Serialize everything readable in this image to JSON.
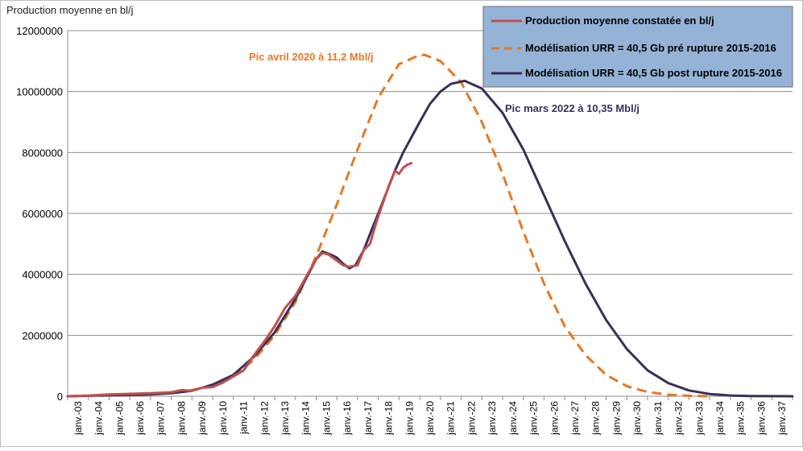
{
  "chart_data": {
    "type": "line",
    "ylabel": "Production moyenne en bl/j",
    "ylim": [
      0,
      12000000
    ],
    "yticks": [
      "0",
      "2000000",
      "4000000",
      "6000000",
      "8000000",
      "10000000",
      "12000000"
    ],
    "xlim": [
      2003,
      2038
    ],
    "x_tick_labels": [
      "janv.-03",
      "janv.-04",
      "janv.-05",
      "janv.-06",
      "janv.-07",
      "janv.-08",
      "janv.-09",
      "janv.-10",
      "janv.-11",
      "janv.-12",
      "janv.-13",
      "janv.-14",
      "janv.-15",
      "janv.-16",
      "janv.-17",
      "janv.-18",
      "janv.-19",
      "janv.-20",
      "janv.-21",
      "janv.-22",
      "janv.-23",
      "janv.-24",
      "janv.-25",
      "janv.-26",
      "janv.-27",
      "janv.-28",
      "janv.-29",
      "janv.-30",
      "janv.-31",
      "janv.-32",
      "janv.-33",
      "janv.-34",
      "janv.-35",
      "janv.-36",
      "janv.-37"
    ],
    "grid": "horizontal",
    "legend_position": "top-right",
    "series": [
      {
        "name": "Production moyenne constatée en bl/j",
        "color": "#c0504d",
        "style": "solid",
        "x": [
          2003.0,
          2004.0,
          2005.0,
          2006.0,
          2007.0,
          2008.0,
          2008.5,
          2009.0,
          2009.5,
          2010.0,
          2010.5,
          2011.0,
          2011.5,
          2012.0,
          2012.5,
          2013.0,
          2013.5,
          2014.0,
          2014.5,
          2015.0,
          2015.3,
          2015.6,
          2016.0,
          2016.3,
          2016.6,
          2017.0,
          2017.3,
          2017.6,
          2017.9,
          2018.2,
          2018.5,
          2018.8,
          2019.0,
          2019.2,
          2019.4,
          2019.6
        ],
        "values": [
          0,
          20000,
          60000,
          80000,
          100000,
          130000,
          200000,
          180000,
          280000,
          300000,
          450000,
          650000,
          850000,
          1350000,
          1800000,
          2300000,
          2900000,
          3300000,
          3900000,
          4500000,
          4700000,
          4650000,
          4450000,
          4300000,
          4250000,
          4300000,
          4800000,
          5000000,
          5700000,
          6300000,
          6900000,
          7400000,
          7300000,
          7500000,
          7600000,
          7650000
        ]
      },
      {
        "name": "Modélisation URR = 40,5 Gb pré rupture 2015-2016",
        "color": "#e87722",
        "style": "dashed",
        "peak_x": 2020.25,
        "peak_y": 11200000,
        "x": [
          2003,
          2004,
          2005,
          2006,
          2007,
          2008,
          2009,
          2010,
          2011,
          2012,
          2013,
          2014,
          2015,
          2016,
          2017,
          2018,
          2019,
          2020,
          2020.25,
          2021,
          2022,
          2023,
          2024,
          2025,
          2026,
          2027,
          2028,
          2029,
          2030,
          2031,
          2032,
          2033,
          2034
        ],
        "values": [
          0,
          10000,
          30000,
          50000,
          80000,
          120000,
          200000,
          350000,
          650000,
          1200000,
          2000000,
          3100000,
          4600000,
          6300000,
          8100000,
          9800000,
          10900000,
          11200000,
          11200000,
          11000000,
          10300000,
          9000000,
          7300000,
          5400000,
          3700000,
          2300000,
          1350000,
          700000,
          330000,
          140000,
          50000,
          15000,
          0
        ]
      },
      {
        "name": "Modélisation URR = 40,5 Gb post rupture 2015-2016",
        "color": "#3b2e5a",
        "style": "solid",
        "peak_x": 2022.17,
        "peak_y": 10350000,
        "x": [
          2003,
          2005,
          2007,
          2008,
          2009,
          2010,
          2011,
          2012,
          2013,
          2014,
          2015,
          2015.3,
          2015.7,
          2016.0,
          2016.3,
          2016.6,
          2016.9,
          2017.3,
          2017.7,
          2018.0,
          2018.4,
          2018.8,
          2019.2,
          2019.6,
          2020.0,
          2020.5,
          2021.0,
          2021.5,
          2022.17,
          2023.0,
          2024.0,
          2025.0,
          2026.0,
          2027.0,
          2028.0,
          2029.0,
          2030.0,
          2031.0,
          2032.0,
          2033.0,
          2034.0,
          2035.0,
          2036.0,
          2037.0,
          2038.0
        ],
        "values": [
          0,
          30000,
          60000,
          100000,
          180000,
          380000,
          700000,
          1300000,
          2100000,
          3200000,
          4500000,
          4750000,
          4650000,
          4550000,
          4350000,
          4200000,
          4300000,
          4800000,
          5500000,
          6000000,
          6700000,
          7400000,
          8000000,
          8500000,
          9000000,
          9600000,
          10000000,
          10250000,
          10350000,
          10100000,
          9300000,
          8100000,
          6600000,
          5100000,
          3700000,
          2500000,
          1550000,
          850000,
          430000,
          190000,
          75000,
          25000,
          8000,
          2000,
          0
        ]
      }
    ],
    "annotations": [
      {
        "text": "Pic avril 2020 à 11,2 Mbl/j",
        "color": "#e87722"
      },
      {
        "text": "Pic mars 2022 à 10,35 Mbl/j",
        "color": "#3b2e5a"
      }
    ],
    "legend_bg": "#95b3d7"
  }
}
